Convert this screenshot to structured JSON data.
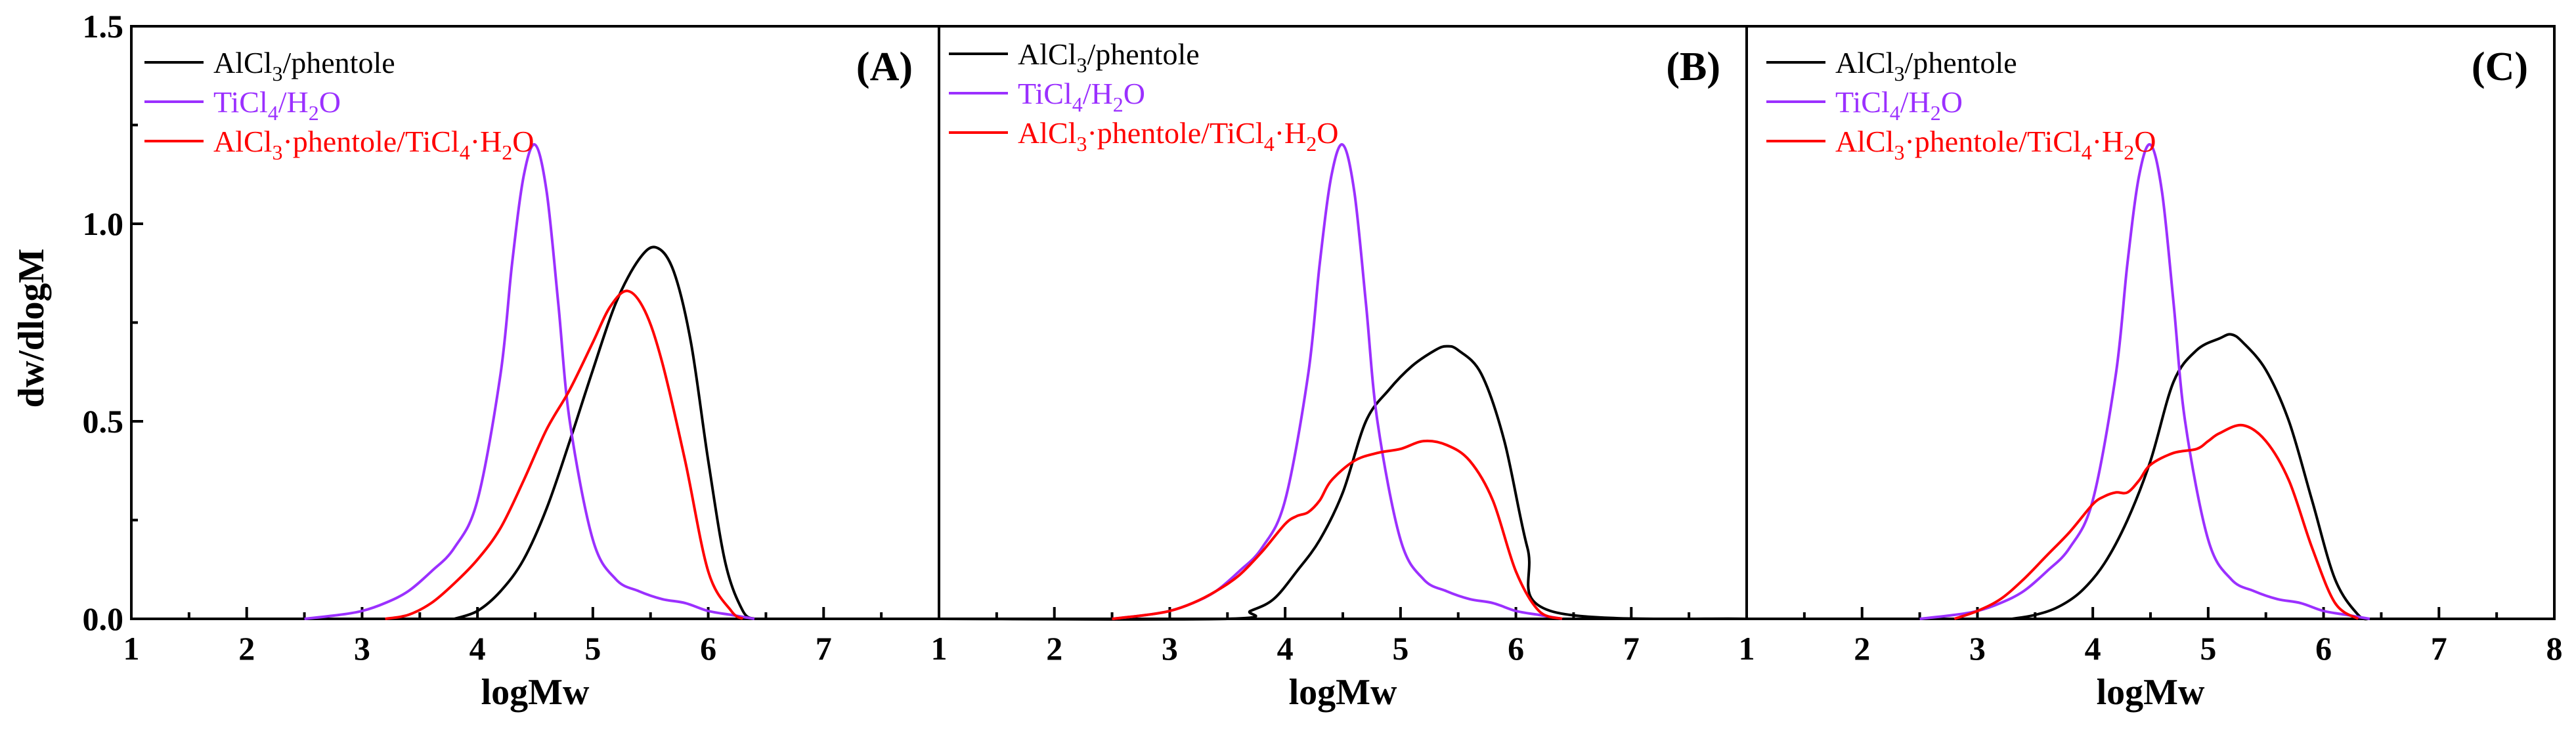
{
  "chart_data": {
    "type": "line",
    "ylabel": "dw/dlogM",
    "ylim": [
      0,
      1.5
    ],
    "yticks": [
      "0.0",
      "0.5",
      "1.0",
      "1.5"
    ],
    "legend_location": "top-left",
    "legend_entries": [
      {
        "key": "alcl3",
        "parts": [
          [
            "AlCl",
            ""
          ],
          [
            "3",
            "sub"
          ],
          [
            "/phentole",
            ""
          ]
        ],
        "color": "#000000"
      },
      {
        "key": "ticl4",
        "parts": [
          [
            "TiCl",
            ""
          ],
          [
            "4",
            "sub"
          ],
          [
            "/H",
            ""
          ],
          [
            "2",
            "sub"
          ],
          [
            "O",
            ""
          ]
        ],
        "color": "#9B30FF"
      },
      {
        "key": "mixed",
        "parts": [
          [
            "AlCl",
            ""
          ],
          [
            "3",
            "sub"
          ],
          [
            "·phentole/TiCl",
            ""
          ],
          [
            "4",
            "sub"
          ],
          [
            "·H",
            ""
          ],
          [
            "2",
            "sub"
          ],
          [
            "O",
            ""
          ]
        ],
        "color": "#FF0000"
      }
    ],
    "panels": [
      {
        "label": "(A)",
        "xlabel": "logMw",
        "xlim": [
          1,
          8
        ],
        "xticks": [
          "1",
          "2",
          "3",
          "4",
          "5",
          "6",
          "7"
        ],
        "series": [
          {
            "name": "AlCl3/phentole",
            "color": "#000000",
            "x": [
              3.8,
              4.0,
              4.2,
              4.4,
              4.6,
              4.8,
              5.0,
              5.2,
              5.4,
              5.55,
              5.7,
              5.85,
              6.0,
              6.15,
              6.3,
              6.4
            ],
            "y": [
              0,
              0.02,
              0.07,
              0.15,
              0.28,
              0.45,
              0.63,
              0.8,
              0.91,
              0.94,
              0.88,
              0.7,
              0.4,
              0.14,
              0.02,
              0
            ]
          },
          {
            "name": "TiCl4/H2O",
            "color": "#9B30FF",
            "x": [
              2.5,
              2.8,
              3.0,
              3.2,
              3.4,
              3.6,
              3.8,
              4.0,
              4.2,
              4.3,
              4.4,
              4.5,
              4.6,
              4.7,
              4.8,
              5.0,
              5.2,
              5.4,
              5.6,
              5.8,
              6.0,
              6.2,
              6.4
            ],
            "y": [
              0,
              0.01,
              0.02,
              0.04,
              0.07,
              0.12,
              0.18,
              0.3,
              0.62,
              0.9,
              1.12,
              1.2,
              1.08,
              0.8,
              0.5,
              0.2,
              0.1,
              0.07,
              0.05,
              0.04,
              0.02,
              0.01,
              0
            ]
          },
          {
            "name": "AlCl3·phentole/TiCl4·H2O",
            "color": "#FF0000",
            "x": [
              3.2,
              3.4,
              3.6,
              3.8,
              4.0,
              4.2,
              4.4,
              4.6,
              4.8,
              5.0,
              5.15,
              5.3,
              5.45,
              5.6,
              5.8,
              6.0,
              6.2,
              6.3
            ],
            "y": [
              0,
              0.01,
              0.04,
              0.09,
              0.15,
              0.23,
              0.35,
              0.48,
              0.58,
              0.7,
              0.79,
              0.83,
              0.78,
              0.65,
              0.4,
              0.12,
              0.02,
              0
            ]
          }
        ]
      },
      {
        "label": "(B)",
        "xlabel": "logMw",
        "xlim": [
          1,
          8
        ],
        "xticks": [
          "1",
          "2",
          "3",
          "4",
          "5",
          "6",
          "7"
        ],
        "series": [
          {
            "name": "AlCl3/phentole",
            "color": "#000000",
            "x": [
              1,
              3.5,
              3.7,
              3.9,
              4.1,
              4.3,
              4.5,
              4.7,
              4.9,
              5.1,
              5.3,
              5.4,
              5.5,
              5.7,
              5.9,
              6.1,
              6.3,
              8
            ],
            "y": [
              0,
              0,
              0.02,
              0.05,
              0.12,
              0.2,
              0.32,
              0.5,
              0.58,
              0.64,
              0.68,
              0.69,
              0.68,
              0.62,
              0.45,
              0.18,
              0.02,
              0
            ]
          },
          {
            "name": "TiCl4/H2O",
            "color": "#9B30FF",
            "x": [
              2.5,
              2.8,
              3.0,
              3.2,
              3.4,
              3.6,
              3.8,
              4.0,
              4.2,
              4.3,
              4.4,
              4.5,
              4.6,
              4.7,
              4.8,
              5.0,
              5.2,
              5.4,
              5.6,
              5.8,
              6.0,
              6.2,
              6.4
            ],
            "y": [
              0,
              0.01,
              0.02,
              0.04,
              0.07,
              0.12,
              0.18,
              0.3,
              0.62,
              0.9,
              1.12,
              1.2,
              1.08,
              0.8,
              0.5,
              0.2,
              0.1,
              0.07,
              0.05,
              0.04,
              0.02,
              0.01,
              0
            ]
          },
          {
            "name": "AlCl3·phentole/TiCl4·H2O",
            "color": "#FF0000",
            "x": [
              2.5,
              2.8,
              3.0,
              3.2,
              3.4,
              3.6,
              3.8,
              4.0,
              4.1,
              4.2,
              4.3,
              4.4,
              4.6,
              4.8,
              5.0,
              5.2,
              5.4,
              5.6,
              5.8,
              6.0,
              6.2,
              6.4
            ],
            "y": [
              0,
              0.01,
              0.02,
              0.04,
              0.07,
              0.11,
              0.17,
              0.24,
              0.26,
              0.27,
              0.3,
              0.35,
              0.4,
              0.42,
              0.43,
              0.45,
              0.44,
              0.4,
              0.3,
              0.12,
              0.02,
              0
            ]
          }
        ]
      },
      {
        "label": "(C)",
        "xlabel": "logMw",
        "xlim": [
          1,
          8
        ],
        "xticks": [
          "1",
          "2",
          "3",
          "4",
          "5",
          "6",
          "7",
          "8"
        ],
        "series": [
          {
            "name": "AlCl3/phentole",
            "color": "#000000",
            "x": [
              3.3,
              3.5,
              3.7,
              3.9,
              4.1,
              4.3,
              4.5,
              4.7,
              4.9,
              5.1,
              5.2,
              5.3,
              5.5,
              5.7,
              5.9,
              6.1,
              6.3,
              6.4
            ],
            "y": [
              0,
              0.01,
              0.03,
              0.07,
              0.14,
              0.25,
              0.4,
              0.6,
              0.68,
              0.71,
              0.72,
              0.7,
              0.63,
              0.5,
              0.3,
              0.1,
              0.01,
              0
            ]
          },
          {
            "name": "TiCl4/H2O",
            "color": "#9B30FF",
            "x": [
              2.5,
              2.8,
              3.0,
              3.2,
              3.4,
              3.6,
              3.8,
              4.0,
              4.2,
              4.3,
              4.4,
              4.5,
              4.6,
              4.7,
              4.8,
              5.0,
              5.2,
              5.4,
              5.6,
              5.8,
              6.0,
              6.2,
              6.4
            ],
            "y": [
              0,
              0.01,
              0.02,
              0.04,
              0.07,
              0.12,
              0.18,
              0.3,
              0.62,
              0.9,
              1.12,
              1.2,
              1.08,
              0.8,
              0.5,
              0.2,
              0.1,
              0.07,
              0.05,
              0.04,
              0.02,
              0.01,
              0
            ]
          },
          {
            "name": "AlCl3·phentole/TiCl4·H2O",
            "color": "#FF0000",
            "x": [
              2.8,
              3.0,
              3.2,
              3.4,
              3.6,
              3.8,
              4.0,
              4.1,
              4.2,
              4.3,
              4.4,
              4.5,
              4.7,
              4.9,
              5.0,
              5.1,
              5.3,
              5.5,
              5.7,
              5.9,
              6.1,
              6.3
            ],
            "y": [
              0,
              0.02,
              0.05,
              0.1,
              0.16,
              0.22,
              0.29,
              0.31,
              0.32,
              0.32,
              0.35,
              0.39,
              0.42,
              0.43,
              0.45,
              0.47,
              0.49,
              0.45,
              0.35,
              0.18,
              0.04,
              0
            ]
          }
        ]
      }
    ]
  }
}
